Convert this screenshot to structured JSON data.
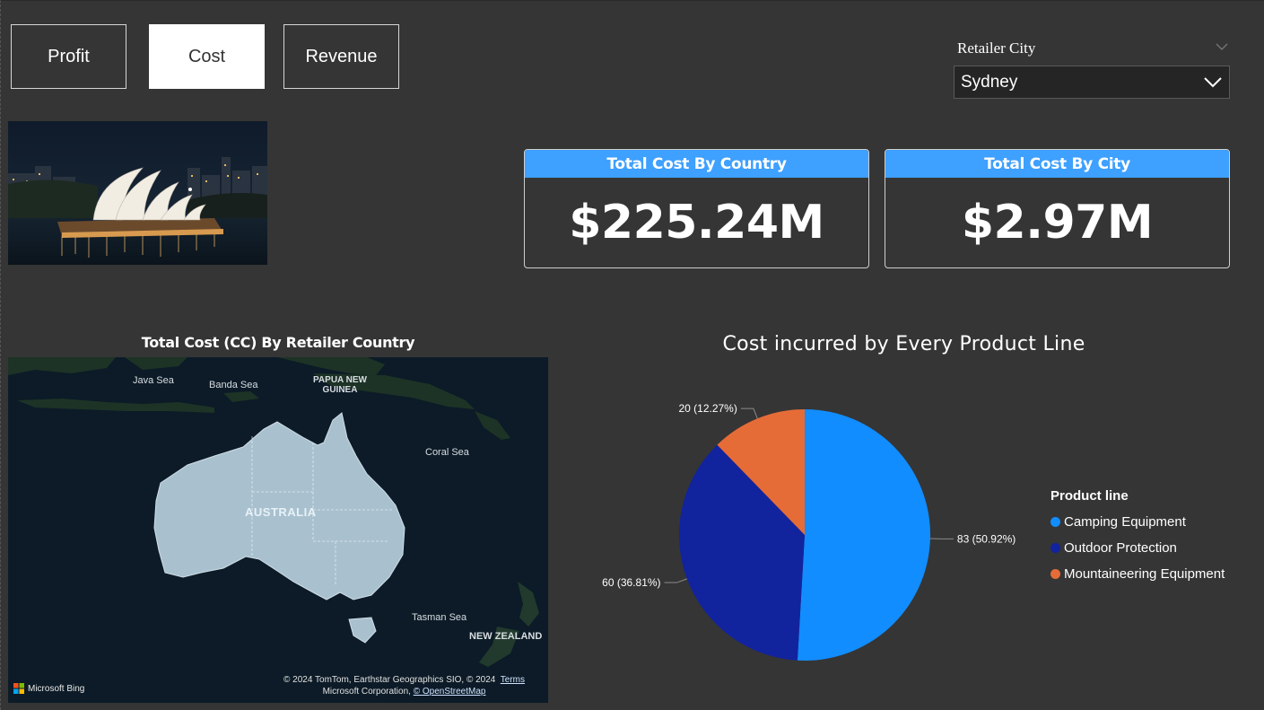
{
  "nav": {
    "profit_label": "Profit",
    "cost_label": "Cost",
    "revenue_label": "Revenue",
    "active": "Cost"
  },
  "slicer": {
    "title": "Retailer City",
    "selected": "Sydney"
  },
  "kpis": {
    "country": {
      "title": "Total Cost By Country",
      "value": "$225.24M"
    },
    "city": {
      "title": "Total Cost By City",
      "value": "$2.97M"
    }
  },
  "map": {
    "title": "Total Cost (CC) By Retailer Country",
    "labels": {
      "java_sea": "Java Sea",
      "banda_sea": "Banda Sea",
      "png_line1": "PAPUA NEW",
      "png_line2": "GUINEA",
      "coral_sea": "Coral Sea",
      "australia": "AUSTRALIA",
      "tasman_sea": "Tasman Sea",
      "new_zealand": "NEW ZEALAND"
    },
    "bing_label": "Microsoft Bing",
    "copyright_line1": "© 2024 TomTom, Earthstar Geographics SIO, © 2024",
    "terms_label": "Terms",
    "copyright_line2": "Microsoft Corporation,",
    "osm_label": "© OpenStreetMap"
  },
  "chart_data": {
    "type": "pie",
    "title": "Cost incurred by Every Product Line",
    "legend_title": "Product line",
    "legend_position": "right",
    "slices": [
      {
        "name": "Camping Equipment",
        "value": 83,
        "label": "83 (50.92%)",
        "color": "#118dff"
      },
      {
        "name": "Outdoor Protection",
        "value": 60,
        "label": "60 (36.81%)",
        "color": "#12239e"
      },
      {
        "name": "Mountaineering Equipment",
        "value": 20,
        "label": "20 (12.27%)",
        "color": "#e66c37"
      }
    ]
  },
  "colors": {
    "background": "#353535",
    "card_header": "#3ea0ff"
  }
}
